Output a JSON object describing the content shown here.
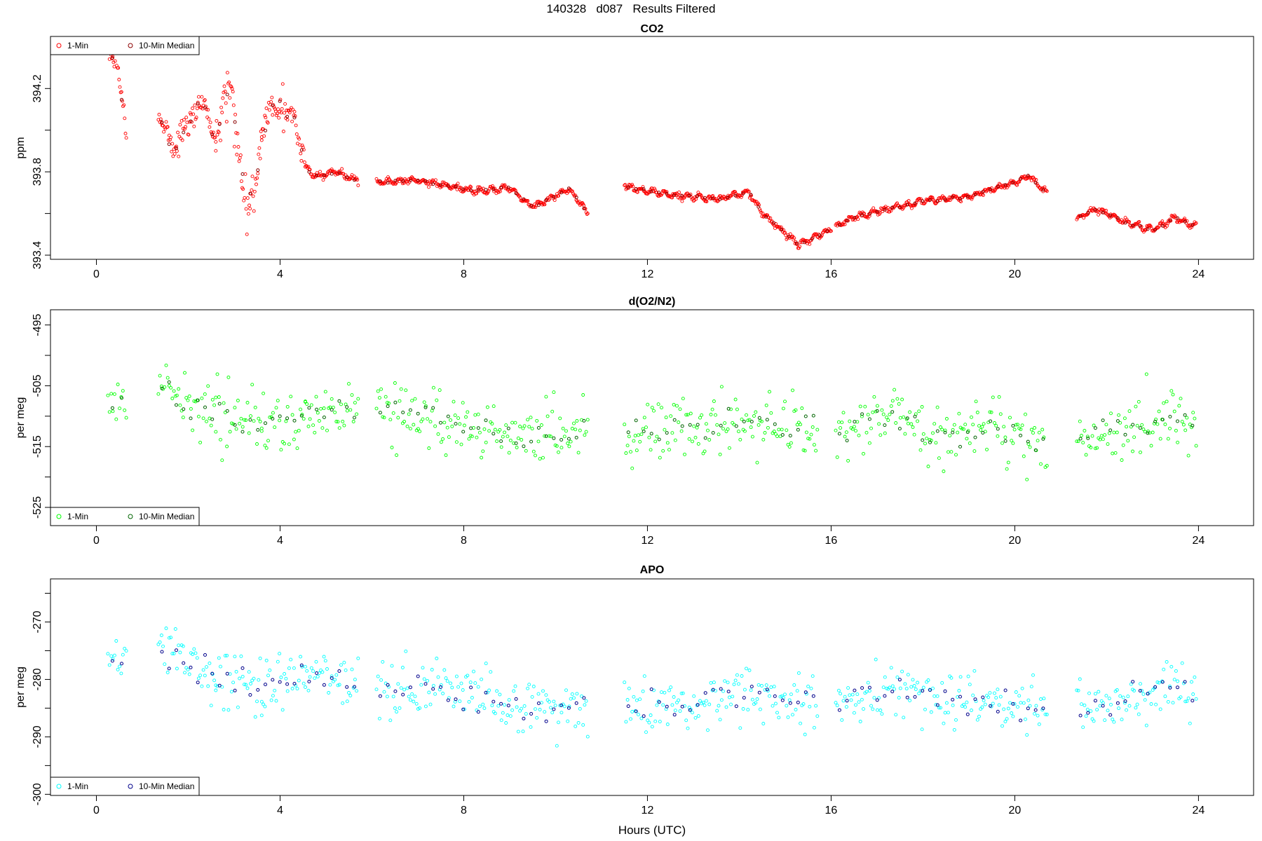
{
  "page_title": "140328   d087   Results Filtered",
  "chart_data": [
    {
      "type": "scatter",
      "title": "CO2",
      "xlabel": "",
      "ylabel": "ppm",
      "xlim": [
        -1,
        25.2
      ],
      "ylim": [
        393.38,
        394.45
      ],
      "xticks": [
        0,
        4,
        8,
        12,
        16,
        20,
        24
      ],
      "yticks": [
        393.4,
        393.6,
        393.8,
        394.0,
        394.2
      ],
      "ytick_labels": [
        "393.4",
        "",
        "393.8",
        "",
        "394.2"
      ],
      "legend_position": "top-left",
      "grid": false,
      "series": [
        {
          "name": "1-Min",
          "color": "#ff0000",
          "x": [],
          "y": []
        },
        {
          "name": "10-Min Median",
          "color": "#8b0000",
          "x": [],
          "y": []
        }
      ],
      "profile": [
        [
          0.25,
          394.38
        ],
        [
          0.45,
          394.32
        ],
        [
          0.65,
          393.98
        ],
        [
          1.35,
          394.05
        ],
        [
          1.7,
          393.92
        ],
        [
          2.0,
          394.02
        ],
        [
          2.3,
          394.15
        ],
        [
          2.6,
          393.95
        ],
        [
          2.9,
          394.25
        ],
        [
          3.1,
          393.85
        ],
        [
          3.3,
          393.62
        ],
        [
          3.5,
          393.8
        ],
        [
          3.75,
          394.1
        ],
        [
          4.0,
          394.12
        ],
        [
          4.25,
          394.1
        ],
        [
          4.55,
          393.82
        ],
        [
          4.8,
          393.78
        ],
        [
          5.2,
          393.8
        ],
        [
          5.7,
          393.76
        ],
        [
          6.1,
          393.75
        ],
        [
          7.0,
          393.76
        ],
        [
          8.2,
          393.71
        ],
        [
          9.0,
          393.72
        ],
        [
          9.5,
          393.63
        ],
        [
          10.3,
          393.72
        ],
        [
          10.7,
          393.6
        ],
        [
          11.5,
          393.73
        ],
        [
          12.5,
          393.69
        ],
        [
          13.5,
          393.67
        ],
        [
          14.2,
          393.7
        ],
        [
          14.6,
          393.58
        ],
        [
          15.3,
          393.45
        ],
        [
          15.8,
          393.5
        ],
        [
          16.1,
          393.54
        ],
        [
          16.5,
          393.58
        ],
        [
          17.0,
          393.61
        ],
        [
          18.0,
          393.66
        ],
        [
          19.0,
          393.68
        ],
        [
          20.0,
          393.75
        ],
        [
          20.3,
          393.78
        ],
        [
          20.6,
          393.72
        ],
        [
          21.35,
          393.58
        ],
        [
          21.8,
          393.62
        ],
        [
          22.5,
          393.55
        ],
        [
          23.0,
          393.52
        ],
        [
          23.5,
          393.58
        ],
        [
          23.9,
          393.54
        ]
      ],
      "segments": [
        [
          0.25,
          0.65
        ],
        [
          1.35,
          2.6
        ],
        [
          2.6,
          3.6
        ],
        [
          3.6,
          4.55
        ],
        [
          4.55,
          5.7
        ],
        [
          6.1,
          10.7
        ],
        [
          11.5,
          16.0
        ],
        [
          16.1,
          20.7
        ],
        [
          21.35,
          23.95
        ]
      ],
      "noise": [
        0.04,
        0.06,
        0.12,
        0.09,
        0.015,
        0.012,
        0.012,
        0.012,
        0.012
      ],
      "median_series": []
    },
    {
      "type": "scatter",
      "title": "d(O2/N2)",
      "xlabel": "",
      "ylabel": "per meg",
      "xlim": [
        -1,
        25.2
      ],
      "ylim": [
        -528,
        -492.5
      ],
      "xticks": [
        0,
        4,
        8,
        12,
        16,
        20,
        24
      ],
      "yticks": [
        -525,
        -520,
        -515,
        -510,
        -505,
        -500,
        -495
      ],
      "ytick_labels": [
        "-525",
        "",
        "-515",
        "",
        "-505",
        "",
        "-495"
      ],
      "legend_position": "bottom-left",
      "grid": false,
      "series": [
        {
          "name": "1-Min",
          "color": "#00ff00",
          "x": [],
          "y": []
        },
        {
          "name": "10-Min Median",
          "color": "#006400",
          "x": [],
          "y": []
        }
      ],
      "profile": [
        [
          0.25,
          -507
        ],
        [
          0.65,
          -509
        ],
        [
          1.35,
          -505
        ],
        [
          2.6,
          -510
        ],
        [
          3.6,
          -512
        ],
        [
          4.55,
          -510
        ],
        [
          5.7,
          -509
        ],
        [
          6.1,
          -509
        ],
        [
          7.0,
          -510
        ],
        [
          8.0,
          -512
        ],
        [
          9.5,
          -514
        ],
        [
          10.7,
          -512
        ],
        [
          11.5,
          -513
        ],
        [
          12.5,
          -512
        ],
        [
          13.5,
          -512
        ],
        [
          14.5,
          -511
        ],
        [
          15.7,
          -512
        ],
        [
          16.1,
          -513
        ],
        [
          17.3,
          -509
        ],
        [
          18.5,
          -514
        ],
        [
          19.5,
          -512
        ],
        [
          20.6,
          -515
        ],
        [
          21.35,
          -513
        ],
        [
          22.5,
          -512
        ],
        [
          23.5,
          -509
        ],
        [
          23.95,
          -512
        ]
      ],
      "segments": [
        [
          0.25,
          0.65
        ],
        [
          1.35,
          2.6
        ],
        [
          2.6,
          3.6
        ],
        [
          3.6,
          4.55
        ],
        [
          4.55,
          5.7
        ],
        [
          6.1,
          10.7
        ],
        [
          11.5,
          15.7
        ],
        [
          16.1,
          20.7
        ],
        [
          21.35,
          23.95
        ]
      ],
      "noise": [
        4,
        5,
        6,
        5,
        4,
        5,
        5,
        5,
        5
      ],
      "median_series": []
    },
    {
      "type": "scatter",
      "title": "APO",
      "xlabel": "Hours (UTC)",
      "ylabel": "per meg",
      "xlim": [
        -1,
        25.2
      ],
      "ylim": [
        -300.2,
        -262.5
      ],
      "xticks": [
        0,
        4,
        8,
        12,
        16,
        20,
        24
      ],
      "yticks": [
        -300,
        -295,
        -290,
        -285,
        -280,
        -275,
        -270,
        -265
      ],
      "ytick_labels": [
        "-300",
        "",
        "-290",
        "",
        "-280",
        "",
        "-270",
        ""
      ],
      "legend_position": "bottom-left",
      "grid": false,
      "series": [
        {
          "name": "1-Min",
          "color": "#00ffff",
          "x": [],
          "y": []
        },
        {
          "name": "10-Min Median",
          "color": "#00008b",
          "x": [],
          "y": []
        }
      ],
      "profile": [
        [
          0.25,
          -275
        ],
        [
          0.65,
          -277
        ],
        [
          1.35,
          -274
        ],
        [
          2.6,
          -279
        ],
        [
          3.6,
          -281
        ],
        [
          4.55,
          -279
        ],
        [
          5.7,
          -280
        ],
        [
          6.1,
          -281
        ],
        [
          7.0,
          -282
        ],
        [
          8.0,
          -283
        ],
        [
          9.5,
          -285
        ],
        [
          10.7,
          -284
        ],
        [
          11.5,
          -285
        ],
        [
          12.5,
          -284
        ],
        [
          13.5,
          -283
        ],
        [
          14.5,
          -283
        ],
        [
          15.7,
          -284
        ],
        [
          16.1,
          -285
        ],
        [
          17.3,
          -281
        ],
        [
          18.5,
          -285
        ],
        [
          19.5,
          -283
        ],
        [
          20.6,
          -286
        ],
        [
          21.35,
          -285
        ],
        [
          22.5,
          -283
        ],
        [
          23.5,
          -281
        ],
        [
          23.95,
          -283
        ]
      ],
      "segments": [
        [
          0.25,
          0.65
        ],
        [
          1.35,
          2.6
        ],
        [
          2.6,
          3.6
        ],
        [
          3.6,
          4.55
        ],
        [
          4.55,
          5.7
        ],
        [
          6.1,
          10.7
        ],
        [
          11.5,
          15.7
        ],
        [
          16.1,
          20.7
        ],
        [
          21.35,
          23.95
        ]
      ],
      "noise": [
        4,
        5,
        6,
        5,
        4,
        5,
        5,
        5,
        5
      ],
      "median_series": []
    }
  ]
}
